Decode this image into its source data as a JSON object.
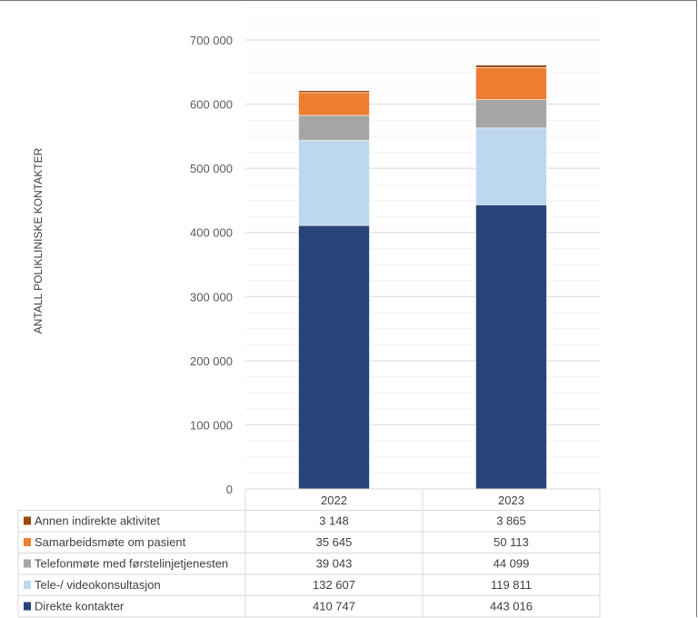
{
  "chart_data": {
    "type": "bar",
    "stacked": true,
    "categories": [
      "2022",
      "2023"
    ],
    "ylabel": "ANTALL POLIKLINISKE KONTAKTER",
    "ylim": [
      0,
      750000
    ],
    "yticks": [
      0,
      100000,
      200000,
      300000,
      400000,
      500000,
      600000,
      700000
    ],
    "ytick_labels": [
      "0",
      "100 000",
      "200 000",
      "300 000",
      "400 000",
      "500 000",
      "600 000",
      "700 000"
    ],
    "grid": true,
    "legend": "data-table",
    "series": [
      {
        "name": "Direkte kontakter",
        "color": "#264478",
        "values": [
          410747,
          443016
        ],
        "labels": [
          "410 747",
          "443 016"
        ]
      },
      {
        "name": "Tele-/ videokonsultasjon",
        "color": "#BDD7EE",
        "values": [
          132607,
          119811
        ],
        "labels": [
          "132 607",
          "119 811"
        ]
      },
      {
        "name": "Telefonmøte med førstelinjetjenesten",
        "color": "#A5A5A5",
        "values": [
          39043,
          44099
        ],
        "labels": [
          "39 043",
          "44 099"
        ]
      },
      {
        "name": "Samarbeidsmøte om pasient",
        "color": "#ED7D31",
        "values": [
          35645,
          50113
        ],
        "labels": [
          "35 645",
          "50 113"
        ]
      },
      {
        "name": "Annen indirekte aktivitet",
        "color": "#9E480E",
        "values": [
          3148,
          3865
        ],
        "labels": [
          "3 148",
          "3 865"
        ]
      }
    ]
  }
}
